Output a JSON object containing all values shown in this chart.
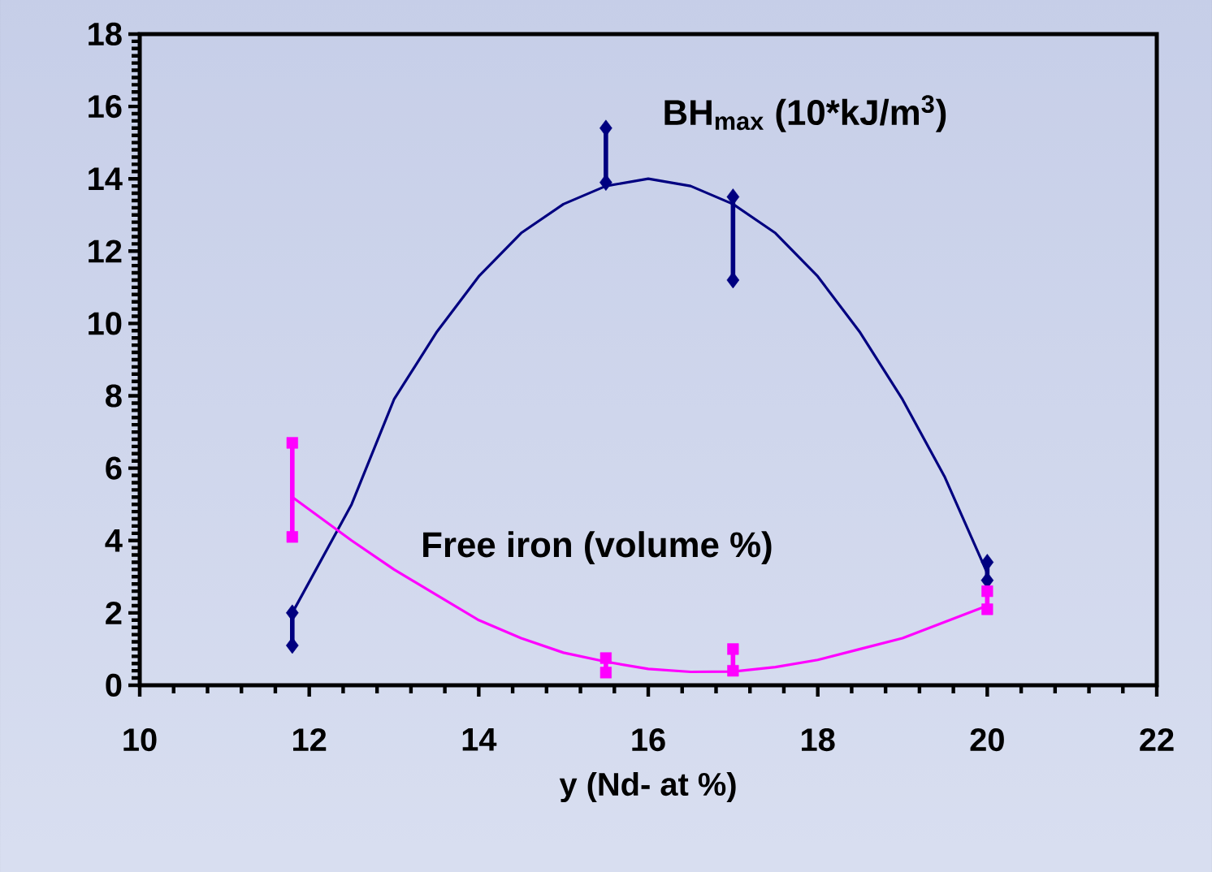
{
  "chart_data": {
    "type": "line",
    "xlabel": "y (Nd- at %)",
    "xlim": [
      10,
      22
    ],
    "ylim": [
      0,
      18
    ],
    "xticks": [
      10,
      12,
      14,
      16,
      18,
      20,
      22
    ],
    "yticks": [
      0,
      2,
      4,
      6,
      8,
      10,
      12,
      14,
      16,
      18
    ],
    "grid": false,
    "series": [
      {
        "color": "#000080",
        "marker": "diamond",
        "x": [
          11.8,
          11.8
        ],
        "values": [
          2.0,
          1.1
        ]
      },
      {
        "name": "BH$_{max}$ (10*kJ/m$^{3}$)",
        "color": "#000080",
        "marker": "diamond",
        "x": [
          15.5,
          15.5
        ],
        "values": [
          15.4,
          13.9
        ]
      },
      {
        "color": "#000080",
        "marker": "diamond",
        "x": [
          17,
          17
        ],
        "values": [
          13.5,
          11.2
        ]
      },
      {
        "color": "#000080",
        "marker": "diamond",
        "x": [
          20,
          20
        ],
        "values": [
          3.4,
          2.9
        ]
      },
      {
        "color": "#000080",
        "marker": "none",
        "x": [
          11.8,
          12.5,
          13,
          13.5,
          14,
          14.5,
          15,
          15.5,
          16,
          16.5,
          17,
          17.5,
          18,
          18.5,
          19,
          19.5,
          20
        ],
        "values": [
          2.0,
          5.0,
          7.9,
          9.75,
          11.3,
          12.5,
          13.3,
          13.8,
          14.0,
          13.8,
          13.3,
          12.5,
          11.3,
          9.75,
          7.9,
          5.75,
          3.1
        ]
      },
      {
        "name": "Free iron (volume %)",
        "color": "#ff00ff",
        "marker": "square",
        "x": [
          11.8,
          11.8
        ],
        "values": [
          6.7,
          4.1
        ]
      },
      {
        "color": "#ff00ff",
        "marker": "square",
        "x": [
          15.5,
          15.5
        ],
        "values": [
          0.75,
          0.35
        ]
      },
      {
        "color": "#ff00ff",
        "marker": "square",
        "x": [
          17,
          17
        ],
        "values": [
          1.0,
          0.4
        ]
      },
      {
        "color": "#ff00ff",
        "marker": "square",
        "x": [
          20,
          20
        ],
        "values": [
          2.6,
          2.1
        ]
      },
      {
        "color": "#ff00ff",
        "marker": "none",
        "x": [
          11.8,
          12.5,
          13,
          13.5,
          14,
          14.5,
          15,
          15.5,
          16,
          16.5,
          17,
          17.5,
          18,
          18.5,
          19,
          19.5,
          20
        ],
        "values": [
          5.2,
          4.0,
          3.2,
          2.5,
          1.8,
          1.3,
          0.9,
          0.65,
          0.45,
          0.37,
          0.38,
          0.5,
          0.7,
          1.0,
          1.3,
          1.75,
          2.2
        ]
      }
    ]
  }
}
